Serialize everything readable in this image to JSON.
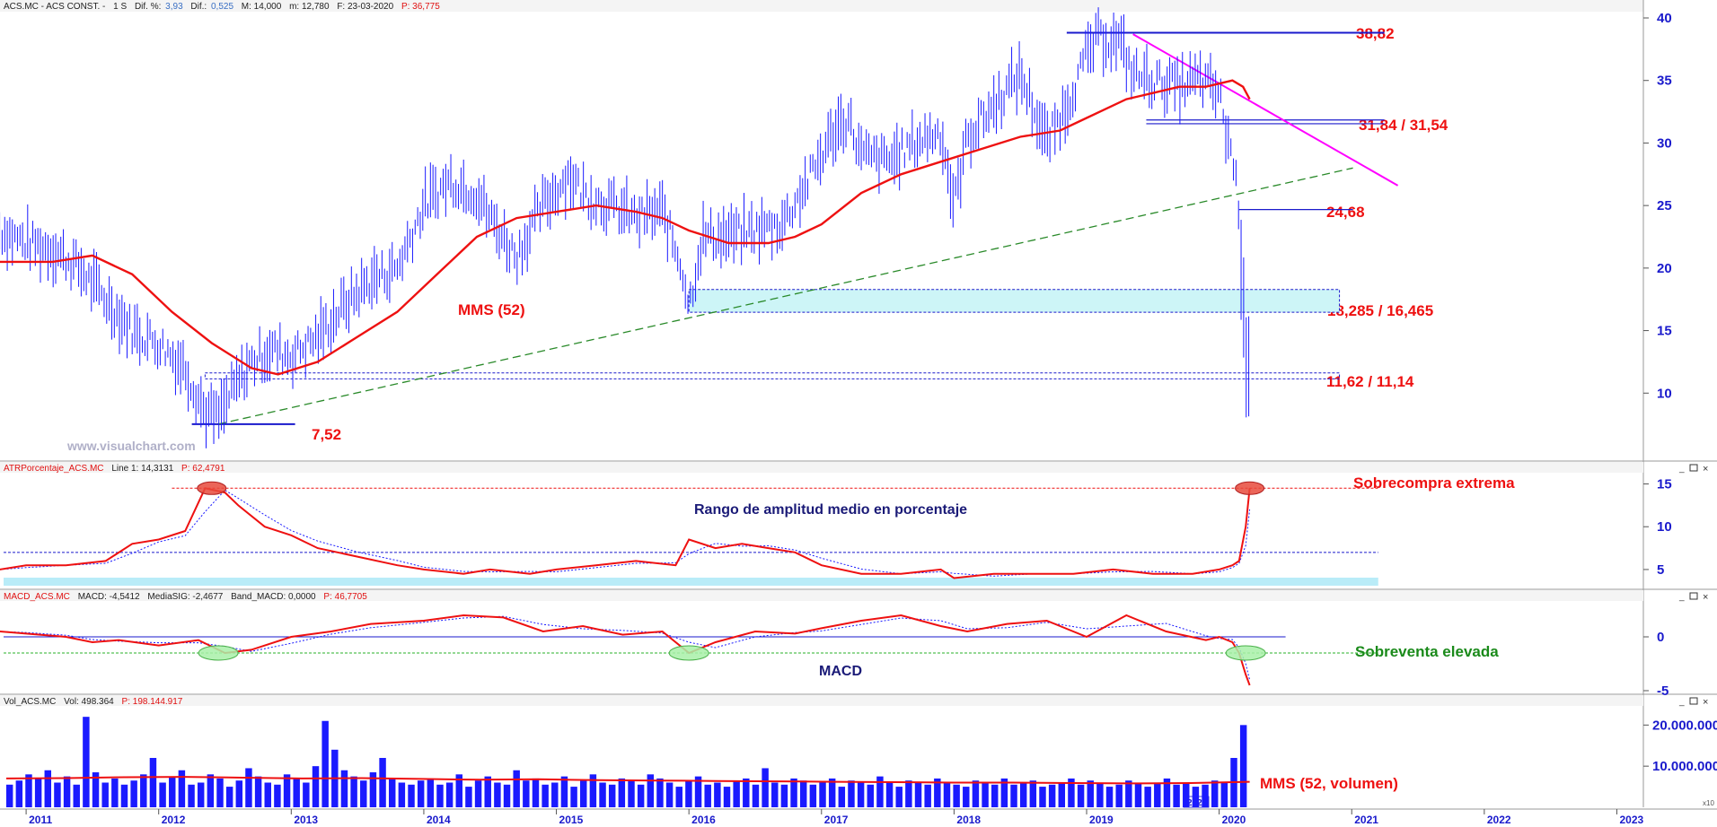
{
  "colors": {
    "price": "#1a1aff",
    "mma": "#ee1111",
    "trendline": "#ff00ff",
    "support": "#2a8a2a",
    "hline": "#1a1acc",
    "zone": "#cdf5f7",
    "annotation_red": "#ee1111",
    "annotation_green": "#1a8a1a",
    "annotation_navy": "#1a1a77",
    "axis_text": "#1a1acc"
  },
  "header": {
    "price": {
      "symbol": "ACS.MC - ACS CONST. -",
      "period": "1 S",
      "dif_pct_label": "Dif. %:",
      "dif_pct": "3,93",
      "dif_label": "Dif.:",
      "dif": "0,525",
      "max": "M: 14,000",
      "min": "m: 12,780",
      "date": "F: 23-03-2020",
      "last": "P: 36,775"
    },
    "atr": {
      "name": "ATRPorcentaje_ACS.MC",
      "line": "Line 1: 14,3131",
      "p": "P: 62,4791"
    },
    "macd": {
      "name": "MACD_ACS.MC",
      "macd": "MACD: -4,5412",
      "sig": "MediaSIG: -2,4677",
      "band": "Band_MACD: 0,0000",
      "p": "P: 46,7705"
    },
    "vol": {
      "name": "Vol_ACS.MC",
      "vol": "Vol: 498.364",
      "p": "P: 198.144.917"
    }
  },
  "watermark": "www.visualchart.com",
  "labels": {
    "mms52": "MMS (52)",
    "atr_title": "Rango de amplitud medio en porcentaje",
    "macd_title": "MACD",
    "sobrecompra": "Sobrecompra extrema",
    "sobreventa": "Sobreventa elevada",
    "mms52_vol": "MMS (52, volumen)",
    "year_badge": "2020",
    "scale_badge": "x10"
  },
  "chart_data": [
    {
      "type": "line",
      "name": "price",
      "subtype": "ohlc-weekly",
      "x": [
        2010.8,
        2011.0,
        2011.2,
        2011.4,
        2011.6,
        2011.8,
        2012.0,
        2012.2,
        2012.35,
        2012.45,
        2012.55,
        2012.7,
        2012.85,
        2013.0,
        2013.2,
        2013.4,
        2013.6,
        2013.8,
        2014.0,
        2014.2,
        2014.4,
        2014.5,
        2014.7,
        2014.9,
        2015.1,
        2015.2,
        2015.4,
        2015.6,
        2015.8,
        2015.95,
        2016.0,
        2016.1,
        2016.3,
        2016.5,
        2016.7,
        2016.9,
        2017.1,
        2017.2,
        2017.3,
        2017.5,
        2017.7,
        2017.9,
        2018.0,
        2018.1,
        2018.3,
        2018.5,
        2018.7,
        2018.85,
        2019.0,
        2019.1,
        2019.25,
        2019.35,
        2019.5,
        2019.7,
        2019.85,
        2020.0,
        2020.05,
        2020.1,
        2020.15,
        2020.18,
        2020.21,
        2020.23
      ],
      "y": [
        23.0,
        22.0,
        21.5,
        20.0,
        17.5,
        15.0,
        14.0,
        12.0,
        8.5,
        8.0,
        10.0,
        12.5,
        13.5,
        13.0,
        14.5,
        17.0,
        19.0,
        20.0,
        25.0,
        27.0,
        26.0,
        24.0,
        21.0,
        25.0,
        27.5,
        26.0,
        25.0,
        24.0,
        24.5,
        20.0,
        17.0,
        22.5,
        22.5,
        23.0,
        23.5,
        27.0,
        31.0,
        32.0,
        29.0,
        28.5,
        30.0,
        31.0,
        25.0,
        30.5,
        33.0,
        35.5,
        30.0,
        33.0,
        37.0,
        38.5,
        38.0,
        35.5,
        35.0,
        34.5,
        35.0,
        34.0,
        31.0,
        29.0,
        25.0,
        16.5,
        12.0,
        13.5
      ],
      "ylim": [
        5,
        40
      ],
      "yticks": [
        10,
        15,
        20,
        25,
        30,
        35,
        40
      ]
    },
    {
      "type": "line",
      "name": "MMS (52)",
      "x": [
        2010.8,
        2011.2,
        2011.5,
        2011.8,
        2012.1,
        2012.4,
        2012.7,
        2012.9,
        2013.2,
        2013.5,
        2013.8,
        2014.1,
        2014.4,
        2014.7,
        2015.0,
        2015.3,
        2015.6,
        2015.8,
        2016.0,
        2016.3,
        2016.6,
        2016.8,
        2017.0,
        2017.3,
        2017.6,
        2017.9,
        2018.2,
        2018.5,
        2018.8,
        2019.0,
        2019.3,
        2019.5,
        2019.7,
        2019.9,
        2020.1,
        2020.18,
        2020.23
      ],
      "y": [
        20.5,
        20.5,
        21.0,
        19.5,
        16.5,
        14.0,
        12.0,
        11.5,
        12.5,
        14.5,
        16.5,
        19.5,
        22.5,
        24.0,
        24.5,
        25.0,
        24.5,
        24.0,
        23.0,
        22.0,
        22.0,
        22.5,
        23.5,
        26.0,
        27.5,
        28.5,
        29.5,
        30.5,
        31.0,
        32.0,
        33.5,
        34.0,
        34.5,
        34.5,
        35.0,
        34.5,
        33.5
      ]
    },
    {
      "type": "line",
      "name": "ATR %",
      "x": [
        2010.8,
        2011.0,
        2011.3,
        2011.6,
        2011.8,
        2012.0,
        2012.2,
        2012.35,
        2012.5,
        2012.6,
        2012.8,
        2013.0,
        2013.2,
        2013.5,
        2013.8,
        2014.0,
        2014.3,
        2014.5,
        2014.8,
        2015.0,
        2015.3,
        2015.6,
        2015.9,
        2016.0,
        2016.2,
        2016.4,
        2016.6,
        2016.8,
        2017.0,
        2017.3,
        2017.6,
        2017.9,
        2018.0,
        2018.3,
        2018.6,
        2018.9,
        2019.2,
        2019.5,
        2019.8,
        2020.0,
        2020.1,
        2020.15,
        2020.2,
        2020.23
      ],
      "y": [
        5,
        5.5,
        5.5,
        6,
        8,
        8.5,
        9.5,
        14.5,
        14,
        12.5,
        10,
        9,
        7.5,
        6.5,
        5.5,
        5,
        4.5,
        5,
        4.5,
        5,
        5.5,
        6,
        5.5,
        8.5,
        7.5,
        8,
        7.5,
        7,
        5.5,
        4.5,
        4.5,
        5,
        4,
        4.5,
        4.5,
        4.5,
        5,
        4.5,
        4.5,
        5,
        5.5,
        6,
        10,
        14.5
      ],
      "ylim": [
        3,
        16
      ],
      "yticks": [
        5,
        10,
        15
      ],
      "threshold": 7
    },
    {
      "type": "line",
      "name": "MACD",
      "x": [
        2010.8,
        2011.0,
        2011.3,
        2011.5,
        2011.7,
        2012.0,
        2012.3,
        2012.5,
        2012.7,
        2013.0,
        2013.3,
        2013.6,
        2014.0,
        2014.3,
        2014.6,
        2014.9,
        2015.2,
        2015.5,
        2015.8,
        2016.0,
        2016.2,
        2016.5,
        2016.8,
        2017.0,
        2017.3,
        2017.6,
        2017.9,
        2018.1,
        2018.4,
        2018.7,
        2019.0,
        2019.3,
        2019.6,
        2019.9,
        2020.0,
        2020.1,
        2020.15,
        2020.2,
        2020.23
      ],
      "y": [
        0.5,
        0.3,
        0,
        -0.5,
        -0.3,
        -0.8,
        -0.3,
        -1.5,
        -1.2,
        0,
        0.5,
        1.2,
        1.5,
        2,
        1.8,
        0.5,
        1,
        0.2,
        0.5,
        -1.5,
        -0.5,
        0.5,
        0.3,
        0.8,
        1.5,
        2,
        1,
        0.5,
        1.2,
        1.5,
        0,
        2,
        0.5,
        -0.3,
        0,
        -0.5,
        -1.5,
        -3.5,
        -4.5
      ],
      "ylim": [
        -5,
        3
      ],
      "yticks": [
        -5,
        0
      ],
      "threshold": -1.5
    },
    {
      "type": "bar",
      "name": "Volume",
      "x_start": 2010.85,
      "x_end": 2020.23,
      "values": [
        5500000,
        6500000,
        8000000,
        7000000,
        9000000,
        6000000,
        7500000,
        5500000,
        22000000,
        8500000,
        6000000,
        7000000,
        5500000,
        6500000,
        8000000,
        12000000,
        6000000,
        7500000,
        9000000,
        5500000,
        6000000,
        8000000,
        7000000,
        5000000,
        6500000,
        9500000,
        7500000,
        6000000,
        5500000,
        8000000,
        7000000,
        6000000,
        10000000,
        21000000,
        14000000,
        9000000,
        7500000,
        6500000,
        8500000,
        12000000,
        7000000,
        6000000,
        5500000,
        6500000,
        7000000,
        5500000,
        6000000,
        8000000,
        5000000,
        6500000,
        7500000,
        6000000,
        5500000,
        9000000,
        6500000,
        7000000,
        5500000,
        6000000,
        7500000,
        5000000,
        6500000,
        8000000,
        6000000,
        5500000,
        7000000,
        6500000,
        5500000,
        8000000,
        7000000,
        6000000,
        5000000,
        6500000,
        7500000,
        5500000,
        6000000,
        5000000,
        6500000,
        7000000,
        5500000,
        9500000,
        6000000,
        5500000,
        7000000,
        6500000,
        5500000,
        6000000,
        7000000,
        5000000,
        6500000,
        6000000,
        5500000,
        7500000,
        6000000,
        5000000,
        6500000,
        6000000,
        5500000,
        7000000,
        6000000,
        5500000,
        5000000,
        6500000,
        6000000,
        5500000,
        7000000,
        5500000,
        6000000,
        6500000,
        5000000,
        5500000,
        6000000,
        7000000,
        5500000,
        6500000,
        6000000,
        5000000,
        5500000,
        6500000,
        6000000,
        5000000,
        6000000,
        7000000,
        5500000,
        6000000,
        5000000,
        5500000,
        6500000,
        6000000,
        12000000,
        20000000
      ],
      "mma": [
        7000000,
        7100000,
        7300000,
        7400000,
        7200000,
        7000000,
        7100000,
        6900000,
        6700000,
        6800000,
        6600000,
        6500000,
        6400000,
        6300000,
        6200000,
        6100000,
        6000000,
        6000000,
        5900000,
        5800000,
        5900000,
        6200000
      ],
      "ylim": [
        0,
        24000000
      ],
      "yticks": [
        10000000,
        20000000
      ],
      "ytick_labels": [
        "10.000.000",
        "20.000.000"
      ]
    }
  ],
  "x_axis": {
    "years": [
      "2011",
      "2012",
      "2013",
      "2014",
      "2015",
      "2016",
      "2017",
      "2018",
      "2019",
      "2020",
      "2021",
      "2022",
      "2023"
    ],
    "xlim": [
      2010.83,
      2023.2
    ]
  },
  "levels": {
    "resistance": {
      "label": "38,82",
      "value": 38.82
    },
    "zone_31": {
      "label": "31,84 / 31,54",
      "hi": 31.84,
      "lo": 31.54
    },
    "support_24": {
      "label": "24,68",
      "value": 24.68
    },
    "zone_18": {
      "label": "18,285 / 16,465",
      "hi": 18.285,
      "lo": 16.465
    },
    "zone_11": {
      "label": "11,62 / 11,14",
      "hi": 11.62,
      "lo": 11.14
    },
    "low": {
      "label": "7,52",
      "value": 7.52
    }
  },
  "price_axis": {
    "ticks": [
      "10",
      "15",
      "20",
      "25",
      "30",
      "35",
      "40"
    ]
  },
  "atr_axis": {
    "ticks": [
      "5",
      "10",
      "15"
    ]
  },
  "macd_axis": {
    "ticks": [
      "-5",
      "0"
    ]
  }
}
